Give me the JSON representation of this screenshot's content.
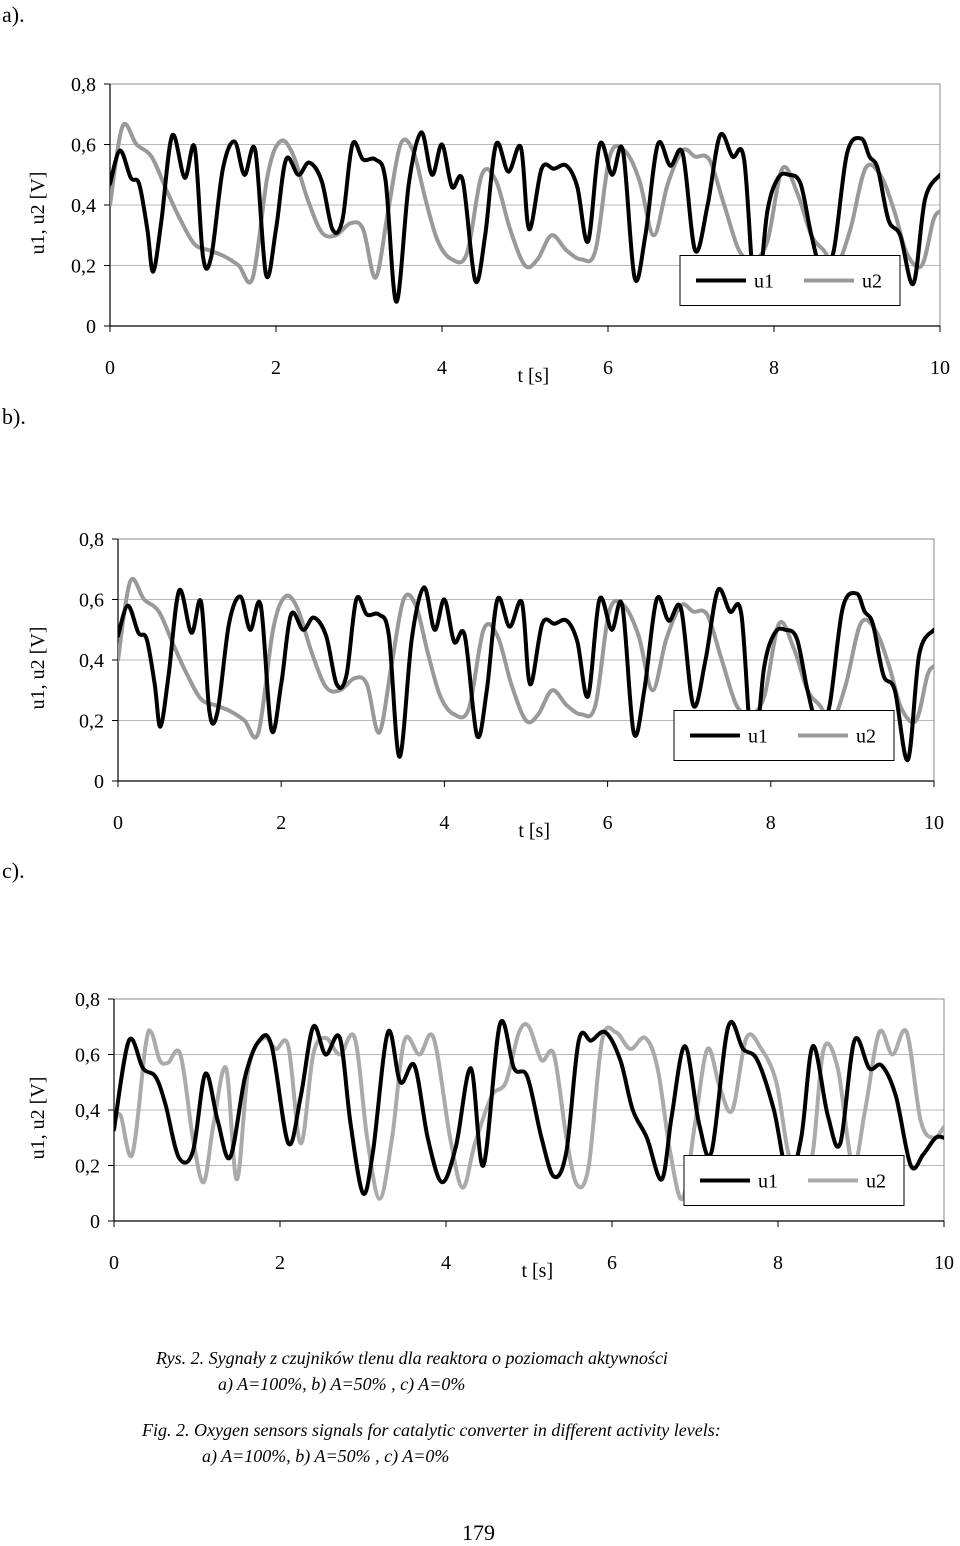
{
  "panel_labels": [
    "a).",
    "b).",
    "c)."
  ],
  "chart_data": [
    {
      "type": "line",
      "ylabel": "u1, u2 [V]",
      "xlabel": "t [s]",
      "xlim": [
        0,
        10
      ],
      "ylim": [
        0,
        0.8
      ],
      "xticks": [
        "0",
        "2",
        "4",
        "6",
        "8",
        "10"
      ],
      "yticks": [
        "0",
        "0,2",
        "0,4",
        "0,6",
        "0,8"
      ],
      "grid": "horizontal",
      "legend_placement": "bottom-right",
      "series": [
        {
          "name": "u1",
          "color": "#000000",
          "x": [
            0,
            0.12,
            0.25,
            0.35,
            0.45,
            0.52,
            0.62,
            0.75,
            0.9,
            1.02,
            1.12,
            1.22,
            1.36,
            1.5,
            1.62,
            1.75,
            1.88,
            2.0,
            2.12,
            2.27,
            2.4,
            2.55,
            2.68,
            2.8,
            2.92,
            3.05,
            3.2,
            3.32,
            3.45,
            3.6,
            3.75,
            3.88,
            4.0,
            4.12,
            4.25,
            4.4,
            4.52,
            4.65,
            4.8,
            4.95,
            5.05,
            5.2,
            5.35,
            5.5,
            5.63,
            5.76,
            5.9,
            6.05,
            6.18,
            6.32,
            6.45,
            6.6,
            6.75,
            6.9,
            7.05,
            7.2,
            7.35,
            7.5,
            7.64,
            7.78,
            7.92,
            8.05,
            8.18,
            8.32,
            8.45,
            8.58,
            8.72,
            8.88,
            9.05,
            9.15,
            9.25,
            9.38,
            9.52,
            9.68,
            9.82,
            10.0
          ],
          "y": [
            0.47,
            0.58,
            0.49,
            0.47,
            0.32,
            0.18,
            0.35,
            0.63,
            0.49,
            0.59,
            0.23,
            0.23,
            0.52,
            0.61,
            0.5,
            0.58,
            0.17,
            0.32,
            0.55,
            0.5,
            0.54,
            0.48,
            0.32,
            0.35,
            0.6,
            0.55,
            0.55,
            0.48,
            0.08,
            0.47,
            0.64,
            0.5,
            0.6,
            0.46,
            0.48,
            0.15,
            0.3,
            0.6,
            0.51,
            0.59,
            0.32,
            0.52,
            0.52,
            0.53,
            0.46,
            0.28,
            0.6,
            0.5,
            0.58,
            0.16,
            0.3,
            0.6,
            0.53,
            0.57,
            0.25,
            0.4,
            0.63,
            0.56,
            0.55,
            0.08,
            0.38,
            0.49,
            0.5,
            0.47,
            0.3,
            0.18,
            0.25,
            0.57,
            0.62,
            0.56,
            0.52,
            0.35,
            0.3,
            0.14,
            0.42,
            0.5
          ]
        },
        {
          "name": "u2",
          "color": "#999999",
          "x": [
            0,
            0.15,
            0.32,
            0.5,
            0.68,
            0.85,
            1.02,
            1.2,
            1.38,
            1.55,
            1.72,
            1.9,
            2.05,
            2.2,
            2.38,
            2.55,
            2.72,
            2.9,
            3.05,
            3.2,
            3.35,
            3.5,
            3.65,
            3.8,
            3.95,
            4.12,
            4.3,
            4.48,
            4.65,
            4.82,
            5.0,
            5.15,
            5.32,
            5.5,
            5.68,
            5.85,
            6.02,
            6.2,
            6.38,
            6.55,
            6.72,
            6.9,
            7.05,
            7.22,
            7.4,
            7.58,
            7.75,
            7.92,
            8.1,
            8.28,
            8.45,
            8.6,
            8.75,
            8.92,
            9.1,
            9.28,
            9.45,
            9.6,
            9.78,
            9.92,
            10.0
          ],
          "y": [
            0.4,
            0.66,
            0.6,
            0.56,
            0.45,
            0.35,
            0.27,
            0.25,
            0.23,
            0.2,
            0.16,
            0.5,
            0.61,
            0.57,
            0.42,
            0.31,
            0.3,
            0.34,
            0.32,
            0.16,
            0.38,
            0.6,
            0.58,
            0.42,
            0.28,
            0.22,
            0.24,
            0.5,
            0.48,
            0.32,
            0.2,
            0.22,
            0.3,
            0.25,
            0.22,
            0.25,
            0.56,
            0.58,
            0.48,
            0.3,
            0.47,
            0.58,
            0.56,
            0.55,
            0.4,
            0.25,
            0.22,
            0.28,
            0.52,
            0.44,
            0.3,
            0.25,
            0.2,
            0.32,
            0.52,
            0.5,
            0.38,
            0.24,
            0.2,
            0.35,
            0.38
          ]
        }
      ]
    },
    {
      "type": "line",
      "ylabel": "u1, u2 [V]",
      "xlabel": "t [s]",
      "xlim": [
        0,
        10
      ],
      "ylim": [
        0,
        0.8
      ],
      "xticks": [
        "0",
        "2",
        "4",
        "6",
        "8",
        "10"
      ],
      "yticks": [
        "0",
        "0,2",
        "0,4",
        "0,6",
        "0,8"
      ],
      "grid": "horizontal",
      "legend_placement": "bottom-right",
      "series": [
        {
          "name": "u1",
          "color": "#000000",
          "x": [
            0,
            0.12,
            0.25,
            0.35,
            0.45,
            0.52,
            0.62,
            0.75,
            0.9,
            1.02,
            1.12,
            1.22,
            1.36,
            1.5,
            1.62,
            1.75,
            1.88,
            2.0,
            2.12,
            2.27,
            2.4,
            2.55,
            2.68,
            2.8,
            2.92,
            3.05,
            3.2,
            3.32,
            3.45,
            3.6,
            3.75,
            3.88,
            4.0,
            4.12,
            4.25,
            4.4,
            4.52,
            4.65,
            4.8,
            4.95,
            5.05,
            5.2,
            5.35,
            5.5,
            5.63,
            5.76,
            5.9,
            6.05,
            6.18,
            6.32,
            6.45,
            6.6,
            6.75,
            6.9,
            7.05,
            7.2,
            7.35,
            7.5,
            7.64,
            7.78,
            7.92,
            8.05,
            8.18,
            8.32,
            8.45,
            8.58,
            8.72,
            8.88,
            9.05,
            9.15,
            9.25,
            9.38,
            9.52,
            9.68,
            9.82,
            10.0
          ],
          "y": [
            0.48,
            0.58,
            0.49,
            0.47,
            0.32,
            0.18,
            0.35,
            0.63,
            0.49,
            0.59,
            0.23,
            0.23,
            0.52,
            0.61,
            0.5,
            0.58,
            0.17,
            0.32,
            0.55,
            0.5,
            0.54,
            0.48,
            0.32,
            0.35,
            0.6,
            0.55,
            0.55,
            0.48,
            0.08,
            0.47,
            0.64,
            0.5,
            0.6,
            0.46,
            0.48,
            0.15,
            0.3,
            0.6,
            0.51,
            0.59,
            0.32,
            0.52,
            0.52,
            0.53,
            0.46,
            0.28,
            0.6,
            0.5,
            0.58,
            0.16,
            0.3,
            0.6,
            0.53,
            0.57,
            0.25,
            0.4,
            0.63,
            0.56,
            0.55,
            0.08,
            0.38,
            0.49,
            0.5,
            0.47,
            0.3,
            0.18,
            0.25,
            0.57,
            0.62,
            0.56,
            0.52,
            0.35,
            0.3,
            0.07,
            0.42,
            0.5
          ]
        },
        {
          "name": "u2",
          "color": "#999999",
          "x": [
            0,
            0.15,
            0.32,
            0.5,
            0.68,
            0.85,
            1.02,
            1.2,
            1.38,
            1.55,
            1.72,
            1.9,
            2.05,
            2.2,
            2.38,
            2.55,
            2.72,
            2.9,
            3.05,
            3.2,
            3.35,
            3.5,
            3.65,
            3.8,
            3.95,
            4.12,
            4.3,
            4.48,
            4.65,
            4.82,
            5.0,
            5.15,
            5.32,
            5.5,
            5.68,
            5.85,
            6.02,
            6.2,
            6.38,
            6.55,
            6.72,
            6.9,
            7.05,
            7.22,
            7.4,
            7.58,
            7.75,
            7.92,
            8.1,
            8.28,
            8.45,
            8.6,
            8.75,
            8.92,
            9.1,
            9.28,
            9.45,
            9.6,
            9.78,
            9.92,
            10.0
          ],
          "y": [
            0.4,
            0.66,
            0.6,
            0.56,
            0.45,
            0.35,
            0.27,
            0.25,
            0.23,
            0.2,
            0.16,
            0.5,
            0.61,
            0.57,
            0.42,
            0.31,
            0.3,
            0.34,
            0.32,
            0.16,
            0.38,
            0.6,
            0.58,
            0.42,
            0.28,
            0.22,
            0.24,
            0.5,
            0.48,
            0.32,
            0.2,
            0.22,
            0.3,
            0.25,
            0.22,
            0.25,
            0.56,
            0.58,
            0.48,
            0.3,
            0.47,
            0.58,
            0.56,
            0.55,
            0.4,
            0.25,
            0.22,
            0.28,
            0.52,
            0.44,
            0.3,
            0.25,
            0.2,
            0.32,
            0.52,
            0.5,
            0.38,
            0.24,
            0.2,
            0.35,
            0.38
          ]
        }
      ]
    },
    {
      "type": "line",
      "ylabel": "u1, u2 [V]",
      "xlabel": "t [s]",
      "xlim": [
        0,
        10
      ],
      "ylim": [
        0,
        0.8
      ],
      "xticks": [
        "0",
        "2",
        "4",
        "6",
        "8",
        "10"
      ],
      "yticks": [
        "0",
        "0,2",
        "0,4",
        "0,6",
        "0,8"
      ],
      "grid": "horizontal",
      "legend_placement": "bottom-right",
      "series": [
        {
          "name": "u1",
          "color": "#000000",
          "x": [
            0,
            0.18,
            0.35,
            0.5,
            0.62,
            0.78,
            0.95,
            1.1,
            1.25,
            1.4,
            1.58,
            1.75,
            1.9,
            2.1,
            2.25,
            2.4,
            2.55,
            2.72,
            2.85,
            3.0,
            3.12,
            3.3,
            3.45,
            3.62,
            3.78,
            3.95,
            4.12,
            4.3,
            4.45,
            4.65,
            4.82,
            4.98,
            5.15,
            5.3,
            5.45,
            5.6,
            5.75,
            5.92,
            6.1,
            6.25,
            6.42,
            6.6,
            6.72,
            6.88,
            7.05,
            7.2,
            7.4,
            7.58,
            7.75,
            7.95,
            8.12,
            8.28,
            8.42,
            8.6,
            8.75,
            8.92,
            9.1,
            9.25,
            9.42,
            9.6,
            9.75,
            9.9,
            10.0
          ],
          "y": [
            0.33,
            0.65,
            0.55,
            0.52,
            0.42,
            0.23,
            0.25,
            0.53,
            0.36,
            0.23,
            0.52,
            0.65,
            0.63,
            0.28,
            0.45,
            0.7,
            0.6,
            0.66,
            0.35,
            0.1,
            0.25,
            0.68,
            0.5,
            0.56,
            0.3,
            0.14,
            0.27,
            0.55,
            0.2,
            0.71,
            0.55,
            0.52,
            0.3,
            0.16,
            0.25,
            0.65,
            0.65,
            0.68,
            0.58,
            0.4,
            0.3,
            0.15,
            0.38,
            0.63,
            0.35,
            0.25,
            0.7,
            0.62,
            0.58,
            0.4,
            0.16,
            0.3,
            0.63,
            0.38,
            0.28,
            0.65,
            0.55,
            0.56,
            0.45,
            0.2,
            0.24,
            0.3,
            0.3
          ]
        },
        {
          "name": "u2",
          "color": "#aaaaaa",
          "x": [
            0,
            0.08,
            0.22,
            0.38,
            0.45,
            0.55,
            0.65,
            0.8,
            0.95,
            1.08,
            1.2,
            1.35,
            1.48,
            1.62,
            1.8,
            1.95,
            2.1,
            2.25,
            2.4,
            2.55,
            2.72,
            2.9,
            3.05,
            3.2,
            3.35,
            3.5,
            3.68,
            3.85,
            4.05,
            4.2,
            4.35,
            4.55,
            4.72,
            4.88,
            5.0,
            5.15,
            5.3,
            5.45,
            5.58,
            5.72,
            5.88,
            6.05,
            6.22,
            6.4,
            6.55,
            6.7,
            6.85,
            7.0,
            7.15,
            7.3,
            7.45,
            7.62,
            7.8,
            7.98,
            8.12,
            8.28,
            8.42,
            8.55,
            8.72,
            8.9,
            9.05,
            9.22,
            9.38,
            9.55,
            9.72,
            9.88,
            10.0
          ],
          "y": [
            0.36,
            0.38,
            0.24,
            0.63,
            0.68,
            0.58,
            0.57,
            0.6,
            0.3,
            0.14,
            0.35,
            0.55,
            0.15,
            0.55,
            0.66,
            0.62,
            0.63,
            0.28,
            0.6,
            0.66,
            0.6,
            0.66,
            0.3,
            0.08,
            0.3,
            0.65,
            0.6,
            0.66,
            0.3,
            0.12,
            0.28,
            0.45,
            0.5,
            0.68,
            0.7,
            0.58,
            0.6,
            0.3,
            0.13,
            0.2,
            0.65,
            0.68,
            0.62,
            0.66,
            0.55,
            0.25,
            0.08,
            0.35,
            0.62,
            0.48,
            0.4,
            0.66,
            0.62,
            0.5,
            0.25,
            0.12,
            0.25,
            0.62,
            0.55,
            0.2,
            0.4,
            0.68,
            0.6,
            0.68,
            0.36,
            0.3,
            0.34
          ]
        }
      ]
    }
  ],
  "caption": {
    "pl_line1": "Rys. 2. Sygnały z czujników tlenu dla reaktora o poziomach aktywności",
    "pl_line2": "a) A=100%, b) A=50% , c) A=0%",
    "en_line1": "Fig. 2. Oxygen sensors signals for catalytic converter in different activity levels:",
    "en_line2": "a) A=100%, b) A=50% , c) A=0%"
  },
  "page_number": "179"
}
